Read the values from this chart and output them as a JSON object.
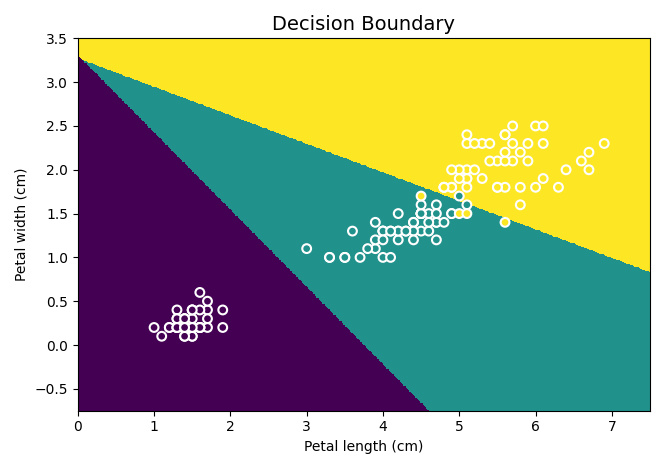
{
  "title": "Decision Boundary",
  "xlabel": "Petal length (cm)",
  "ylabel": "Petal width (cm)",
  "xlim": [
    0,
    7.5
  ],
  "ylim": [
    -0.75,
    3.5
  ],
  "figsize": [
    6.65,
    4.69
  ],
  "dpi": 100,
  "feature_indices": [
    2,
    3
  ],
  "scatter_edgecolor": "white",
  "scatter_facecolor": "none",
  "scatter_linewidth": 1.5,
  "scatter_size": 40,
  "cmap": "viridis",
  "grid": false,
  "title_fontsize": 14
}
